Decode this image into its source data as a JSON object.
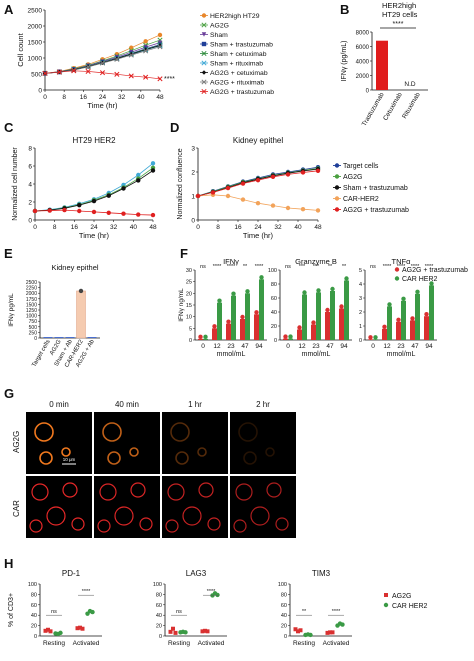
{
  "panels": {
    "A": {
      "letter": "A",
      "ylabel": "Cell count",
      "xlabel": "Time (hr)",
      "xticks": [
        "0",
        "8",
        "16",
        "24",
        "32",
        "40",
        "48"
      ],
      "yticks": [
        "0",
        "500",
        "1000",
        "1500",
        "2000",
        "2500"
      ],
      "sig": "****",
      "legend": [
        {
          "label": "HER2high HT29",
          "color": "#e8862a",
          "marker": "circle"
        },
        {
          "label": "AG2G",
          "color": "#4aa040",
          "marker": "x"
        },
        {
          "label": "Sham",
          "color": "#6a3d9a",
          "marker": "tri"
        },
        {
          "label": "Sham + trastuzumab",
          "color": "#1f3f99",
          "marker": "square"
        },
        {
          "label": "Sham + cetuximab",
          "color": "#2a8a3a",
          "marker": "x"
        },
        {
          "label": "Sham + rituximab",
          "color": "#3fa9d6",
          "marker": "x"
        },
        {
          "label": "AG2G + cetuximab",
          "color": "#111111",
          "marker": "diamond"
        },
        {
          "label": "AG2G + rituximab",
          "color": "#7a7a7a",
          "marker": "x"
        },
        {
          "label": "AG2G + trastuzumab",
          "color": "#e02020",
          "marker": "x"
        }
      ]
    },
    "B": {
      "letter": "B",
      "title_line1": "HER2high",
      "title_line2": "HT29 cells",
      "ylabel": "IFNγ (pg/mL)",
      "yticks": [
        "0",
        "2000",
        "4000",
        "6000",
        "8000"
      ],
      "sig": "****",
      "nd": "N.D",
      "categories": [
        "Trastuzumab",
        "Cetuximab",
        "Rituximab"
      ]
    },
    "C": {
      "letter": "C",
      "title": "HT29 HER2",
      "ylabel": "Normalized cell number",
      "xlabel": "Time (hr)",
      "xticks": [
        "0",
        "8",
        "16",
        "24",
        "32",
        "40",
        "48"
      ],
      "yticks": [
        "0",
        "2",
        "4",
        "6",
        "8"
      ]
    },
    "D": {
      "letter": "D",
      "title": "Kidney epithel",
      "ylabel": "Normalized confluence",
      "xlabel": "Time (hr)",
      "xticks": [
        "0",
        "8",
        "16",
        "24",
        "32",
        "40",
        "48"
      ],
      "yticks": [
        "0",
        "1",
        "2",
        "3"
      ],
      "legend": [
        {
          "label": "Target cells",
          "color": "#1f3f99"
        },
        {
          "label": "AG2G",
          "color": "#4aa040"
        },
        {
          "label": "Sham + trastuzumab",
          "color": "#111111"
        },
        {
          "label": "CAR-HER2",
          "color": "#f2a35a"
        },
        {
          "label": "AG2G + trastuzumab",
          "color": "#e02020"
        }
      ]
    },
    "E": {
      "letter": "E",
      "title": "Kidney epithel",
      "ylabel": "IFNγ pg/mL",
      "yticks": [
        "0",
        "250",
        "500",
        "750",
        "1000",
        "1250",
        "1500",
        "1750",
        "2000",
        "2250",
        "2500"
      ],
      "categories": [
        "Target cells",
        "AG2G",
        "Sham + Ab",
        "CAR-HER2",
        "AG2G + Ab"
      ]
    },
    "F": {
      "letter": "F",
      "ylabel": "IFNγ ng/mL",
      "xlabel": "mmol/mL",
      "subtitles": [
        "IFNγ",
        "Granzyme B",
        "TNFα"
      ],
      "xticks": [
        "0",
        "12",
        "23",
        "47",
        "94"
      ],
      "sigs": [
        [
          "ns",
          "****",
          "****",
          "**",
          "****"
        ],
        [
          "ns",
          "***",
          "***",
          "**",
          "**"
        ],
        [
          "ns",
          "****",
          "****",
          "****",
          "****"
        ]
      ],
      "legend": [
        {
          "label": "AG2G + trastuzumab",
          "color": "#d93030"
        },
        {
          "label": "CAR HER2",
          "color": "#3a9a45"
        }
      ]
    },
    "G": {
      "letter": "G",
      "times": [
        "0 min",
        "40 min",
        "1 hr",
        "2 hr"
      ],
      "rows": [
        "AG2G",
        "CAR"
      ],
      "scalebar": "10 μm"
    },
    "H": {
      "letter": "H",
      "ylabel": "% of CD3+",
      "subtitles": [
        "PD-1",
        "LAG3",
        "TIM3"
      ],
      "groups": [
        "Resting",
        "Activated"
      ],
      "sigs": [
        [
          "ns",
          "****"
        ],
        [
          "ns",
          "****"
        ],
        [
          "**",
          "****"
        ]
      ],
      "legend": [
        {
          "label": "AG2G",
          "color": "#d93030"
        },
        {
          "label": "CAR HER2",
          "color": "#3a9a45"
        }
      ]
    }
  },
  "chart_data": [
    {
      "panel": "A",
      "type": "line",
      "xlabel": "Time (hr)",
      "ylabel": "Cell count",
      "xlim": [
        0,
        48
      ],
      "ylim": [
        0,
        2500
      ],
      "x": [
        0,
        6,
        12,
        18,
        24,
        30,
        36,
        42,
        48
      ],
      "series": [
        {
          "name": "HER2high HT29",
          "values": [
            520,
            580,
            680,
            800,
            960,
            1120,
            1320,
            1520,
            1720
          ]
        },
        {
          "name": "AG2G",
          "values": [
            520,
            570,
            660,
            770,
            910,
            1060,
            1230,
            1400,
            1560
          ]
        },
        {
          "name": "Sham",
          "values": [
            520,
            570,
            650,
            760,
            890,
            1030,
            1180,
            1340,
            1480
          ]
        },
        {
          "name": "Sham + trastuzumab",
          "values": [
            520,
            560,
            640,
            740,
            870,
            1000,
            1140,
            1290,
            1420
          ]
        },
        {
          "name": "Sham + cetuximab",
          "values": [
            520,
            560,
            640,
            740,
            860,
            990,
            1130,
            1270,
            1400
          ]
        },
        {
          "name": "Sham + rituximab",
          "values": [
            520,
            560,
            630,
            730,
            850,
            980,
            1110,
            1250,
            1380
          ]
        },
        {
          "name": "AG2G + cetuximab",
          "values": [
            520,
            560,
            630,
            730,
            850,
            980,
            1120,
            1260,
            1390
          ]
        },
        {
          "name": "AG2G + rituximab",
          "values": [
            520,
            555,
            620,
            720,
            840,
            960,
            1090,
            1220,
            1350
          ]
        },
        {
          "name": "AG2G + trastuzumab",
          "values": [
            520,
            560,
            600,
            580,
            540,
            490,
            440,
            400,
            350
          ]
        }
      ]
    },
    {
      "panel": "B",
      "type": "bar",
      "ylabel": "IFNγ (pg/mL)",
      "ylim": [
        0,
        8000
      ],
      "categories": [
        "Trastuzumab",
        "Cetuximab",
        "Rituximab"
      ],
      "values": [
        6800,
        0,
        0
      ]
    },
    {
      "panel": "C",
      "type": "line",
      "title": "HT29 HER2",
      "xlabel": "Time (hr)",
      "ylabel": "Normalized cell number",
      "xlim": [
        0,
        48
      ],
      "ylim": [
        0,
        8
      ],
      "x": [
        0,
        6,
        12,
        18,
        24,
        30,
        36,
        42,
        48
      ],
      "series": [
        {
          "values": [
            1.0,
            1.15,
            1.4,
            1.8,
            2.3,
            3.0,
            3.9,
            5.0,
            6.3
          ]
        },
        {
          "values": [
            1.0,
            1.1,
            1.35,
            1.7,
            2.2,
            2.8,
            3.6,
            4.6,
            5.8
          ]
        },
        {
          "values": [
            1.0,
            1.1,
            1.3,
            1.65,
            2.1,
            2.7,
            3.5,
            4.4,
            5.5
          ]
        },
        {
          "values": [
            1.0,
            1.05,
            1.1,
            1.0,
            0.9,
            0.8,
            0.7,
            0.6,
            0.55
          ]
        }
      ]
    },
    {
      "panel": "D",
      "type": "line",
      "title": "Kidney epithel",
      "xlabel": "Time (hr)",
      "ylabel": "Normalized confluence",
      "xlim": [
        0,
        48
      ],
      "ylim": [
        0,
        3
      ],
      "x": [
        0,
        6,
        12,
        18,
        24,
        30,
        36,
        42,
        48
      ],
      "series": [
        {
          "name": "Target cells",
          "values": [
            1.0,
            1.2,
            1.4,
            1.6,
            1.75,
            1.9,
            2.0,
            2.1,
            2.2
          ]
        },
        {
          "name": "AG2G",
          "values": [
            1.0,
            1.18,
            1.38,
            1.58,
            1.72,
            1.86,
            1.97,
            2.06,
            2.15
          ]
        },
        {
          "name": "Sham + trastuzumab",
          "values": [
            1.0,
            1.16,
            1.35,
            1.55,
            1.7,
            1.84,
            1.95,
            2.04,
            2.12
          ]
        },
        {
          "name": "CAR-HER2",
          "values": [
            1.0,
            1.05,
            1.0,
            0.85,
            0.7,
            0.6,
            0.5,
            0.45,
            0.4
          ]
        },
        {
          "name": "AG2G + trastuzumab",
          "values": [
            1.0,
            1.15,
            1.33,
            1.52,
            1.66,
            1.8,
            1.9,
            1.98,
            2.05
          ]
        }
      ]
    },
    {
      "panel": "E",
      "type": "bar",
      "title": "Kidney epithel",
      "ylabel": "IFNγ pg/mL",
      "ylim": [
        0,
        2500
      ],
      "categories": [
        "Target cells",
        "AG2G",
        "Sham + Ab",
        "CAR-HER2",
        "AG2G + Ab"
      ],
      "values": [
        0,
        0,
        0,
        2100,
        0
      ]
    },
    {
      "panel": "F",
      "type": "bar",
      "xlabel": "mmol/mL",
      "ylabel": "IFNγ ng/mL",
      "subplots": [
        {
          "title": "IFNγ",
          "ylim": [
            0,
            30
          ],
          "categories": [
            "0",
            "12",
            "23",
            "47",
            "94"
          ],
          "series": [
            {
              "name": "AG2G + trastuzumab",
              "values": [
                0.5,
                5,
                7,
                9,
                11
              ]
            },
            {
              "name": "CAR HER2",
              "values": [
                0.5,
                16,
                19,
                20,
                26
              ]
            }
          ]
        },
        {
          "title": "Granzyme B",
          "ylim": [
            0,
            100
          ],
          "categories": [
            "0",
            "12",
            "23",
            "47",
            "94"
          ],
          "series": [
            {
              "name": "AG2G + trastuzumab",
              "values": [
                2,
                15,
                22,
                40,
                45
              ]
            },
            {
              "name": "CAR HER2",
              "values": [
                2,
                65,
                68,
                70,
                85
              ]
            }
          ]
        },
        {
          "title": "TNFα",
          "ylim": [
            0,
            5
          ],
          "categories": [
            "0",
            "12",
            "23",
            "47",
            "94"
          ],
          "series": [
            {
              "name": "AG2G + trastuzumab",
              "values": [
                0.05,
                0.8,
                1.3,
                1.4,
                1.7
              ]
            },
            {
              "name": "CAR HER2",
              "values": [
                0.05,
                2.4,
                2.8,
                3.3,
                3.9
              ]
            }
          ]
        }
      ]
    },
    {
      "panel": "H",
      "type": "scatter",
      "ylabel": "% of CD3+",
      "subplots": [
        {
          "title": "PD-1",
          "ylim": [
            0,
            100
          ],
          "categories": [
            "Resting",
            "Activated"
          ],
          "series": [
            {
              "name": "AG2G",
              "values": [
                [
                  10,
                  12,
                  9
                ],
                [
                  15,
                  16,
                  14
                ]
              ]
            },
            {
              "name": "CAR HER2",
              "values": [
                [
                  5,
                  4,
                  6
                ],
                [
                  43,
                  48,
                  46
                ]
              ]
            }
          ]
        },
        {
          "title": "LAG3",
          "ylim": [
            0,
            100
          ],
          "categories": [
            "Resting",
            "Activated"
          ],
          "series": [
            {
              "name": "AG2G",
              "values": [
                [
                  8,
                  14,
                  6
                ],
                [
                  9,
                  10,
                  9
                ]
              ]
            },
            {
              "name": "CAR HER2",
              "values": [
                [
                  7,
                  8,
                  7
                ],
                [
                  78,
                  82,
                  79
                ]
              ]
            }
          ]
        },
        {
          "title": "TIM3",
          "ylim": [
            0,
            100
          ],
          "categories": [
            "Resting",
            "Activated"
          ],
          "series": [
            {
              "name": "AG2G",
              "values": [
                [
                  13,
                  9,
                  11
                ],
                [
                  6,
                  7,
                  7
                ]
              ]
            },
            {
              "name": "CAR HER2",
              "values": [
                [
                  2,
                  3,
                  2
                ],
                [
                  20,
                  24,
                  22
                ]
              ]
            }
          ]
        }
      ]
    }
  ]
}
